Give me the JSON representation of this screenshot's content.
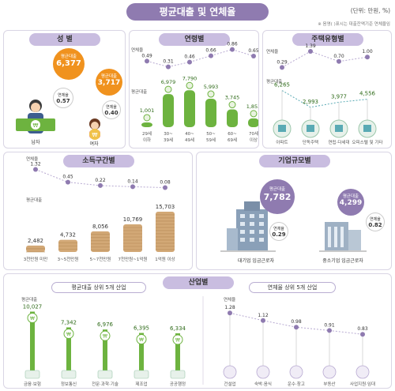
{
  "header": {
    "title": "평균대출 및 연체율",
    "unit": "(단위: 만원, %)",
    "note": "※ 음영(   )표시는 대출잔액기준 연체율임"
  },
  "gender": {
    "title": "성 별",
    "items": [
      {
        "label": "남자",
        "loan_label": "평균대출",
        "loan": "6,377",
        "delinq_label": "연체율",
        "delinq": "0.57"
      },
      {
        "label": "여자",
        "loan_label": "평균대출",
        "loan": "3,717",
        "delinq_label": "연체율",
        "delinq": "0.40"
      }
    ]
  },
  "age": {
    "title": "연령별",
    "delinq_label": "연체율",
    "loan_label": "평균대출",
    "categories": [
      "29세\n이하",
      "30~\n39세",
      "40~\n49세",
      "50~\n59세",
      "60~\n69세",
      "70세\n이상"
    ],
    "cat_line1": [
      "29세",
      "30~",
      "40~",
      "50~",
      "60~",
      "70세"
    ],
    "cat_line2": [
      "이하",
      "39세",
      "49세",
      "59세",
      "69세",
      "이상"
    ],
    "delinq": [
      "0.49",
      "0.31",
      "0.46",
      "0.66",
      "0.86",
      "0.65"
    ],
    "loan": [
      "1,001",
      "6,979",
      "7,790",
      "5,993",
      "3,745",
      "1,853"
    ]
  },
  "housing": {
    "title": "주택유형별",
    "delinq_label": "연체율",
    "loan_label": "평균대출",
    "categories": [
      "아파트",
      "단독주택",
      "연립·다세대",
      "오피스텔 및 기타"
    ],
    "delinq": [
      "0.29",
      "1.39",
      "0.70",
      "1.00"
    ],
    "loan": [
      "6,265",
      "2,993",
      "3,977",
      "4,556"
    ]
  },
  "income": {
    "title": "소득구간별",
    "delinq_label": "연체율",
    "loan_label": "평균대출",
    "categories": [
      "3천만원 미만",
      "3~5천만원",
      "5~7천만원",
      "7천만원~1억원",
      "1억원 이상"
    ],
    "delinq": [
      "1.32",
      "0.45",
      "0.22",
      "0.14",
      "0.08"
    ],
    "loan": [
      "2,482",
      "4,732",
      "8,056",
      "10,769",
      "15,703"
    ]
  },
  "company": {
    "title": "기업규모별",
    "items": [
      {
        "label": "대기업 임금근로자",
        "loan_label": "평균대출",
        "loan": "7,782",
        "delinq_label": "연체율",
        "delinq": "0.29"
      },
      {
        "label": "중소기업 임금근로자",
        "loan_label": "평균대출",
        "loan": "4,299",
        "delinq_label": "연체율",
        "delinq": "0.82"
      }
    ]
  },
  "industry": {
    "title": "산업별",
    "loan_sub": "평균대출 상위 5개 산업",
    "delinq_sub": "연체율 상위 5개 산업",
    "loan_label": "평균대출",
    "delinq_label": "연체율",
    "loan_categories": [
      "금융·보험",
      "정보통신",
      "전문·과학·기술",
      "제조업",
      "공공행정"
    ],
    "loan": [
      "10,027",
      "7,342",
      "6,976",
      "6,395",
      "6,334"
    ],
    "delinq_categories": [
      "건설업",
      "숙박·음식",
      "운수·창고",
      "부동산",
      "사업지원·임대"
    ],
    "delinq": [
      "1.28",
      "1.12",
      "0.98",
      "0.91",
      "0.83"
    ]
  },
  "colors": {
    "purple": "#8f7bb0",
    "light_purple": "#c9bde0",
    "orange": "#f0921e",
    "green": "#6db33f",
    "teal": "#5aaab4",
    "blue_gray": "#8aa0b8",
    "coin": "#d2a876"
  },
  "chart_data": [
    {
      "type": "line",
      "title": "연령별",
      "categories": [
        "29세 이하",
        "30~39세",
        "40~49세",
        "50~59세",
        "60~69세",
        "70세 이상"
      ],
      "series": [
        {
          "name": "연체율",
          "values": [
            0.49,
            0.31,
            0.46,
            0.66,
            0.86,
            0.65
          ]
        }
      ]
    },
    {
      "type": "bar",
      "title": "연령별",
      "categories": [
        "29세 이하",
        "30~39세",
        "40~49세",
        "50~59세",
        "60~69세",
        "70세 이상"
      ],
      "series": [
        {
          "name": "평균대출",
          "values": [
            1001,
            6979,
            7790,
            5993,
            3745,
            1853
          ]
        }
      ]
    },
    {
      "type": "line",
      "title": "주택유형별",
      "categories": [
        "아파트",
        "단독주택",
        "연립·다세대",
        "오피스텔 및 기타"
      ],
      "series": [
        {
          "name": "연체율",
          "values": [
            0.29,
            1.39,
            0.7,
            1.0
          ]
        },
        {
          "name": "평균대출",
          "values": [
            6265,
            2993,
            3977,
            4556
          ]
        }
      ]
    },
    {
      "type": "line",
      "title": "소득구간별",
      "categories": [
        "3천만원 미만",
        "3~5천만원",
        "5~7천만원",
        "7천만원~1억원",
        "1억원 이상"
      ],
      "series": [
        {
          "name": "연체율",
          "values": [
            1.32,
            0.45,
            0.22,
            0.14,
            0.08
          ]
        },
        {
          "name": "평균대출",
          "values": [
            2482,
            4732,
            8056,
            10769,
            15703
          ]
        }
      ]
    },
    {
      "type": "bar",
      "title": "산업별",
      "categories": [
        "금융·보험",
        "정보통신",
        "전문·과학·기술",
        "제조업",
        "공공행정"
      ],
      "series": [
        {
          "name": "평균대출",
          "values": [
            10027,
            7342,
            6976,
            6395,
            6334
          ]
        }
      ]
    },
    {
      "type": "line",
      "title": "산업별",
      "categories": [
        "건설업",
        "숙박·음식",
        "운수·창고",
        "부동산",
        "사업지원·임대"
      ],
      "series": [
        {
          "name": "연체율",
          "values": [
            1.28,
            1.12,
            0.98,
            0.91,
            0.83
          ]
        }
      ]
    },
    {
      "type": "bar",
      "title": "성 별",
      "categories": [
        "남자",
        "여자"
      ],
      "series": [
        {
          "name": "평균대출",
          "values": [
            6377,
            3717
          ]
        },
        {
          "name": "연체율",
          "values": [
            0.57,
            0.4
          ]
        }
      ]
    },
    {
      "type": "bar",
      "title": "기업규모별",
      "categories": [
        "대기업 임금근로자",
        "중소기업 임금근로자"
      ],
      "series": [
        {
          "name": "평균대출",
          "values": [
            7782,
            4299
          ]
        },
        {
          "name": "연체율",
          "values": [
            0.29,
            0.82
          ]
        }
      ]
    }
  ]
}
